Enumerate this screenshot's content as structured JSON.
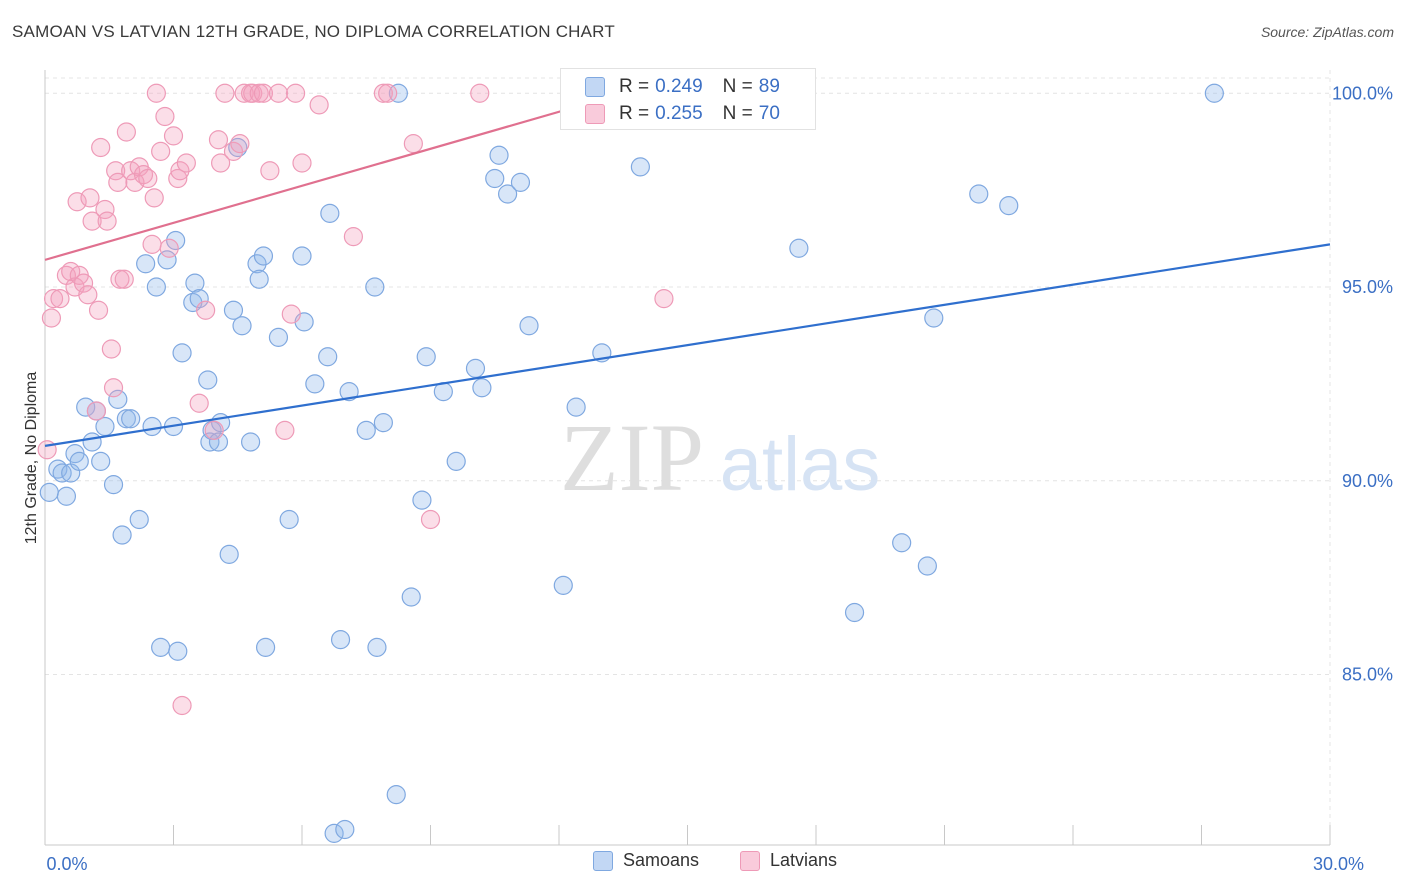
{
  "title": "SAMOAN VS LATVIAN 12TH GRADE, NO DIPLOMA CORRELATION CHART",
  "source": "Source: ZipAtlas.com",
  "watermark": {
    "zip": "ZIP",
    "atlas": "atlas"
  },
  "colors": {
    "blue_fill": "rgba(143,183,235,0.35)",
    "blue_stroke": "#7fa8e0",
    "blue_line": "#2f6fce",
    "pink_fill": "rgba(244,160,190,0.35)",
    "pink_stroke": "#ee9ab7",
    "pink_line": "#e0708f",
    "tick_text": "#3b6fc4",
    "grid": "#e4e4e4"
  },
  "stats": [
    {
      "r_label": "R = ",
      "r_value": "0.249",
      "n_label": "N = ",
      "n_value": "89",
      "color": "blue"
    },
    {
      "r_label": "R = ",
      "r_value": "0.255",
      "n_label": "N = ",
      "n_value": "70",
      "color": "pink"
    }
  ],
  "legend": [
    {
      "label": "Samoans",
      "color": "blue"
    },
    {
      "label": "Latvians",
      "color": "pink"
    }
  ],
  "chart_data": {
    "type": "scatter",
    "title": "SAMOAN VS LATVIAN 12TH GRADE, NO DIPLOMA CORRELATION CHART",
    "xlabel": "",
    "ylabel": "12th Grade, No Diploma",
    "xlim": [
      0,
      30
    ],
    "ylim": [
      80.6,
      100.6
    ],
    "x_tick_labels": [
      {
        "value": 0,
        "label": "0.0%"
      },
      {
        "value": 30,
        "label": "30.0%"
      }
    ],
    "y_tick_labels": [
      {
        "value": 100,
        "label": "100.0%"
      },
      {
        "value": 95,
        "label": "95.0%"
      },
      {
        "value": 90,
        "label": "90.0%"
      },
      {
        "value": 85,
        "label": "85.0%"
      }
    ],
    "grid": true,
    "legend_position": "bottom",
    "series": [
      {
        "name": "Samoans",
        "color": "blue",
        "trend": {
          "x": [
            0,
            30
          ],
          "y": [
            90.9,
            96.1
          ]
        },
        "points": [
          [
            0.1,
            89.7
          ],
          [
            0.3,
            90.3
          ],
          [
            0.4,
            90.2
          ],
          [
            0.5,
            89.6
          ],
          [
            0.6,
            90.2
          ],
          [
            0.7,
            90.7
          ],
          [
            0.8,
            90.5
          ],
          [
            0.95,
            91.9
          ],
          [
            1.1,
            91.0
          ],
          [
            1.2,
            91.8
          ],
          [
            1.3,
            90.5
          ],
          [
            1.4,
            91.4
          ],
          [
            1.6,
            89.9
          ],
          [
            1.7,
            92.1
          ],
          [
            1.8,
            88.6
          ],
          [
            1.9,
            91.6
          ],
          [
            2.0,
            91.6
          ],
          [
            2.2,
            89.0
          ],
          [
            2.35,
            95.6
          ],
          [
            2.5,
            91.4
          ],
          [
            2.6,
            95.0
          ],
          [
            2.7,
            85.7
          ],
          [
            2.85,
            95.7
          ],
          [
            3.0,
            91.4
          ],
          [
            3.05,
            96.2
          ],
          [
            3.1,
            85.6
          ],
          [
            3.2,
            93.3
          ],
          [
            3.45,
            94.6
          ],
          [
            3.5,
            95.1
          ],
          [
            3.6,
            94.7
          ],
          [
            3.8,
            92.6
          ],
          [
            3.85,
            91.0
          ],
          [
            3.9,
            91.3
          ],
          [
            4.05,
            91.0
          ],
          [
            4.1,
            91.5
          ],
          [
            4.3,
            88.1
          ],
          [
            4.4,
            94.4
          ],
          [
            4.5,
            98.6
          ],
          [
            4.6,
            94.0
          ],
          [
            4.8,
            91.0
          ],
          [
            4.95,
            95.6
          ],
          [
            5.0,
            95.2
          ],
          [
            5.1,
            95.8
          ],
          [
            5.15,
            85.7
          ],
          [
            5.45,
            93.7
          ],
          [
            5.7,
            89.0
          ],
          [
            6.0,
            95.8
          ],
          [
            6.05,
            94.1
          ],
          [
            6.3,
            92.5
          ],
          [
            6.6,
            93.2
          ],
          [
            6.65,
            96.9
          ],
          [
            6.75,
            80.9
          ],
          [
            6.9,
            85.9
          ],
          [
            7.0,
            81.0
          ],
          [
            7.1,
            92.3
          ],
          [
            7.5,
            91.3
          ],
          [
            7.7,
            95.0
          ],
          [
            7.75,
            85.7
          ],
          [
            7.9,
            91.5
          ],
          [
            8.2,
            81.9
          ],
          [
            8.25,
            100.0
          ],
          [
            8.55,
            87.0
          ],
          [
            8.8,
            89.5
          ],
          [
            8.9,
            93.2
          ],
          [
            9.3,
            92.3
          ],
          [
            9.6,
            90.5
          ],
          [
            10.05,
            92.9
          ],
          [
            10.2,
            92.4
          ],
          [
            10.5,
            97.8
          ],
          [
            10.6,
            98.4
          ],
          [
            10.8,
            97.4
          ],
          [
            11.1,
            97.7
          ],
          [
            11.3,
            94.0
          ],
          [
            12.1,
            87.3
          ],
          [
            12.4,
            91.9
          ],
          [
            13.0,
            93.3
          ],
          [
            13.9,
            98.1
          ],
          [
            17.6,
            96.0
          ],
          [
            18.9,
            86.6
          ],
          [
            20.0,
            88.4
          ],
          [
            20.6,
            87.8
          ],
          [
            20.75,
            94.2
          ],
          [
            21.8,
            97.4
          ],
          [
            22.5,
            97.1
          ],
          [
            27.3,
            100.0
          ]
        ]
      },
      {
        "name": "Latvians",
        "color": "pink",
        "trend": {
          "x": [
            0,
            13.5
          ],
          "y": [
            95.7,
            100.0
          ]
        },
        "points": [
          [
            0.05,
            90.8
          ],
          [
            0.15,
            94.2
          ],
          [
            0.2,
            94.7
          ],
          [
            0.35,
            94.7
          ],
          [
            0.5,
            95.3
          ],
          [
            0.6,
            95.4
          ],
          [
            0.7,
            95.0
          ],
          [
            0.75,
            97.2
          ],
          [
            0.8,
            95.3
          ],
          [
            0.9,
            95.1
          ],
          [
            1.0,
            94.8
          ],
          [
            1.05,
            97.3
          ],
          [
            1.1,
            96.7
          ],
          [
            1.2,
            91.8
          ],
          [
            1.25,
            94.4
          ],
          [
            1.3,
            98.6
          ],
          [
            1.4,
            97.0
          ],
          [
            1.45,
            96.7
          ],
          [
            1.55,
            93.4
          ],
          [
            1.6,
            92.4
          ],
          [
            1.65,
            98.0
          ],
          [
            1.7,
            97.7
          ],
          [
            1.75,
            95.2
          ],
          [
            1.85,
            95.2
          ],
          [
            1.9,
            99.0
          ],
          [
            2.0,
            98.0
          ],
          [
            2.1,
            97.7
          ],
          [
            2.2,
            98.1
          ],
          [
            2.3,
            97.9
          ],
          [
            2.4,
            97.8
          ],
          [
            2.5,
            96.1
          ],
          [
            2.55,
            97.3
          ],
          [
            2.6,
            100.0
          ],
          [
            2.7,
            98.5
          ],
          [
            2.8,
            99.4
          ],
          [
            2.9,
            96.0
          ],
          [
            3.0,
            98.9
          ],
          [
            3.1,
            97.8
          ],
          [
            3.15,
            98.0
          ],
          [
            3.2,
            84.2
          ],
          [
            3.3,
            98.2
          ],
          [
            3.6,
            92.0
          ],
          [
            3.75,
            94.4
          ],
          [
            3.95,
            91.3
          ],
          [
            4.05,
            98.8
          ],
          [
            4.1,
            98.2
          ],
          [
            4.2,
            100.0
          ],
          [
            4.4,
            98.5
          ],
          [
            4.55,
            98.7
          ],
          [
            4.65,
            100.0
          ],
          [
            4.8,
            100.0
          ],
          [
            4.85,
            100.0
          ],
          [
            5.0,
            100.0
          ],
          [
            5.1,
            100.0
          ],
          [
            5.25,
            98.0
          ],
          [
            5.45,
            100.0
          ],
          [
            5.6,
            91.3
          ],
          [
            5.75,
            94.3
          ],
          [
            5.85,
            100.0
          ],
          [
            6.0,
            98.2
          ],
          [
            6.4,
            99.7
          ],
          [
            7.2,
            96.3
          ],
          [
            7.9,
            100.0
          ],
          [
            8.0,
            100.0
          ],
          [
            8.6,
            98.7
          ],
          [
            9.0,
            89.0
          ],
          [
            10.15,
            100.0
          ],
          [
            14.45,
            94.7
          ]
        ]
      }
    ]
  }
}
